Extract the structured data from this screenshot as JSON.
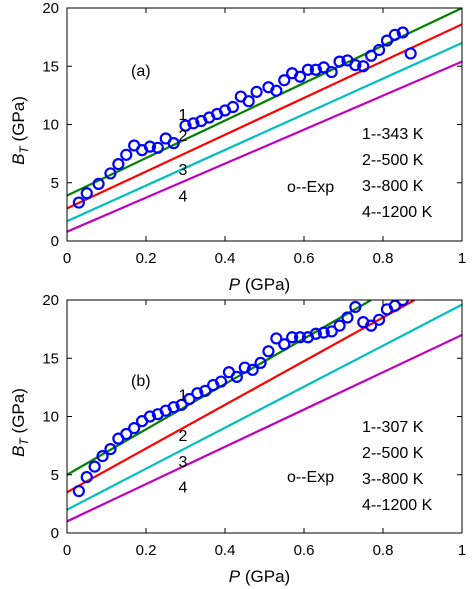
{
  "chart_data": [
    {
      "type": "line",
      "panel_label": "(a)",
      "xlabel_var": "P",
      "xlabel_unit": "(GPa)",
      "ylabel_var": "B",
      "ylabel_sub": "T",
      "ylabel_unit": "(GPa)",
      "xlim": [
        0,
        1
      ],
      "ylim": [
        0,
        20
      ],
      "xticks": [
        0,
        0.2,
        0.4,
        0.6,
        0.8,
        1
      ],
      "xtick_labels": [
        "0",
        "0.2",
        "0.4",
        "0.6",
        "0.8",
        "1"
      ],
      "yticks": [
        0,
        5,
        10,
        15,
        20
      ],
      "ytick_labels": [
        "0",
        "5",
        "10",
        "15",
        "20"
      ],
      "grid": false,
      "legend": [
        "1--343 K",
        "2--500 K",
        "3--800 K",
        "4--1200 K"
      ],
      "exp_label": "o--Exp",
      "series": [
        {
          "label": "1",
          "color": "#008000",
          "x": [
            0,
            1
          ],
          "y": [
            3.9,
            20.0
          ],
          "label_at": [
            0.295,
            10.9
          ]
        },
        {
          "label": "2",
          "color": "#ff0000",
          "x": [
            0,
            1
          ],
          "y": [
            2.8,
            18.6
          ],
          "label_at": [
            0.295,
            9.1
          ]
        },
        {
          "label": "3",
          "color": "#00bfbf",
          "x": [
            0,
            1
          ],
          "y": [
            1.7,
            17.0
          ],
          "label_at": [
            0.295,
            6.2
          ]
        },
        {
          "label": "4",
          "color": "#bf00bf",
          "x": [
            0,
            1
          ],
          "y": [
            0.8,
            15.4
          ],
          "label_at": [
            0.295,
            3.9
          ]
        }
      ],
      "exp_color": "#0000ff",
      "exp_points": {
        "x": [
          0.03,
          0.05,
          0.08,
          0.11,
          0.13,
          0.15,
          0.17,
          0.19,
          0.21,
          0.23,
          0.25,
          0.27,
          0.3,
          0.32,
          0.34,
          0.36,
          0.38,
          0.4,
          0.42,
          0.44,
          0.46,
          0.48,
          0.51,
          0.53,
          0.55,
          0.57,
          0.59,
          0.61,
          0.63,
          0.65,
          0.67,
          0.69,
          0.71,
          0.73,
          0.75,
          0.77,
          0.79,
          0.81,
          0.83,
          0.85,
          0.87
        ],
        "y": [
          3.3,
          4.1,
          4.9,
          5.8,
          6.6,
          7.4,
          8.2,
          7.8,
          8.1,
          8.0,
          8.8,
          8.4,
          9.9,
          10.1,
          10.3,
          10.6,
          10.9,
          11.2,
          11.5,
          12.4,
          12.0,
          12.8,
          13.2,
          12.9,
          13.8,
          14.4,
          14.1,
          14.7,
          14.7,
          14.9,
          14.5,
          15.4,
          15.5,
          15.1,
          15.0,
          15.9,
          16.4,
          17.2,
          17.7,
          17.9,
          16.1
        ]
      }
    },
    {
      "type": "line",
      "panel_label": "(b)",
      "xlabel_var": "P",
      "xlabel_unit": "(GPa)",
      "ylabel_var": "B",
      "ylabel_sub": "T",
      "ylabel_unit": "(GPa)",
      "xlim": [
        0,
        1
      ],
      "ylim": [
        0,
        20
      ],
      "xticks": [
        0,
        0.2,
        0.4,
        0.6,
        0.8,
        1
      ],
      "xtick_labels": [
        "0",
        "0.2",
        "0.4",
        "0.6",
        "0.8",
        "1"
      ],
      "yticks": [
        0,
        5,
        10,
        15,
        20
      ],
      "ytick_labels": [
        "0",
        "5",
        "10",
        "15",
        "20"
      ],
      "grid": false,
      "legend": [
        "1--307 K",
        "2--500 K",
        "3--800 K",
        "4--1200 K"
      ],
      "exp_label": "o--Exp",
      "series": [
        {
          "label": "1",
          "color": "#008000",
          "x": [
            0,
            0.77
          ],
          "y": [
            5.0,
            20.0
          ],
          "label_at": [
            0.295,
            11.9
          ]
        },
        {
          "label": "2",
          "color": "#ff0000",
          "x": [
            0,
            0.88
          ],
          "y": [
            3.5,
            20.0
          ],
          "label_at": [
            0.295,
            8.4
          ]
        },
        {
          "label": "3",
          "color": "#00bfbf",
          "x": [
            0,
            1
          ],
          "y": [
            2.0,
            19.6
          ],
          "label_at": [
            0.295,
            6.2
          ]
        },
        {
          "label": "4",
          "color": "#bf00bf",
          "x": [
            0,
            1
          ],
          "y": [
            1.0,
            17.0
          ],
          "label_at": [
            0.295,
            4.0
          ]
        }
      ],
      "exp_color": "#0000ff",
      "exp_points": {
        "x": [
          0.03,
          0.05,
          0.07,
          0.09,
          0.11,
          0.13,
          0.15,
          0.17,
          0.19,
          0.21,
          0.23,
          0.25,
          0.27,
          0.29,
          0.31,
          0.33,
          0.35,
          0.37,
          0.39,
          0.41,
          0.43,
          0.45,
          0.47,
          0.49,
          0.51,
          0.53,
          0.55,
          0.57,
          0.59,
          0.61,
          0.63,
          0.65,
          0.67,
          0.69,
          0.71,
          0.73,
          0.75,
          0.77,
          0.79,
          0.81,
          0.83,
          0.85
        ],
        "y": [
          3.6,
          4.8,
          5.7,
          6.6,
          7.2,
          8.1,
          8.5,
          9.0,
          9.6,
          10.0,
          10.2,
          10.5,
          10.8,
          11.0,
          11.5,
          12.0,
          12.2,
          12.7,
          13.0,
          13.8,
          13.4,
          14.2,
          14.0,
          14.6,
          15.6,
          16.7,
          16.2,
          16.8,
          16.8,
          16.8,
          17.1,
          17.2,
          17.3,
          17.8,
          18.5,
          19.4,
          18.1,
          17.8,
          18.3,
          19.2,
          19.5,
          20.0
        ]
      }
    }
  ]
}
